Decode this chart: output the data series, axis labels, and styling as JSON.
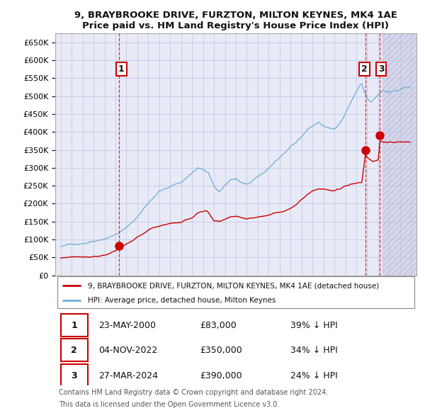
{
  "title": "9, BRAYBROOKE DRIVE, FURZTON, MILTON KEYNES, MK4 1AE",
  "subtitle": "Price paid vs. HM Land Registry's House Price Index (HPI)",
  "sale_dates": [
    "2000-05-23",
    "2022-11-04",
    "2024-03-27"
  ],
  "sale_prices": [
    83000,
    350000,
    390000
  ],
  "sale_labels": [
    "1",
    "2",
    "3"
  ],
  "sale_date_labels": [
    "23-MAY-2000",
    "04-NOV-2022",
    "27-MAR-2024"
  ],
  "sale_price_labels": [
    "£83,000",
    "£350,000",
    "£390,000"
  ],
  "sale_pct_labels": [
    "39% ↓ HPI",
    "34% ↓ HPI",
    "24% ↓ HPI"
  ],
  "legend_line1": "9, BRAYBROOKE DRIVE, FURZTON, MILTON KEYNES, MK4 1AE (detached house)",
  "legend_line2": "HPI: Average price, detached house, Milton Keynes",
  "footer_line1": "Contains HM Land Registry data © Crown copyright and database right 2024.",
  "footer_line2": "This data is licensed under the Open Government Licence v3.0.",
  "hpi_color": "#6baed6",
  "price_color": "#cc0000",
  "background_color": "#e8eaf6",
  "grid_color": "#c5c8e8",
  "hatch_color": "#c0c4e0",
  "ylim": [
    0,
    675000
  ],
  "yticks": [
    0,
    50000,
    100000,
    150000,
    200000,
    250000,
    300000,
    350000,
    400000,
    450000,
    500000,
    550000,
    600000,
    650000
  ],
  "xlim_start": 1994.5,
  "xlim_end": 2027.5,
  "future_start": 2024.42
}
